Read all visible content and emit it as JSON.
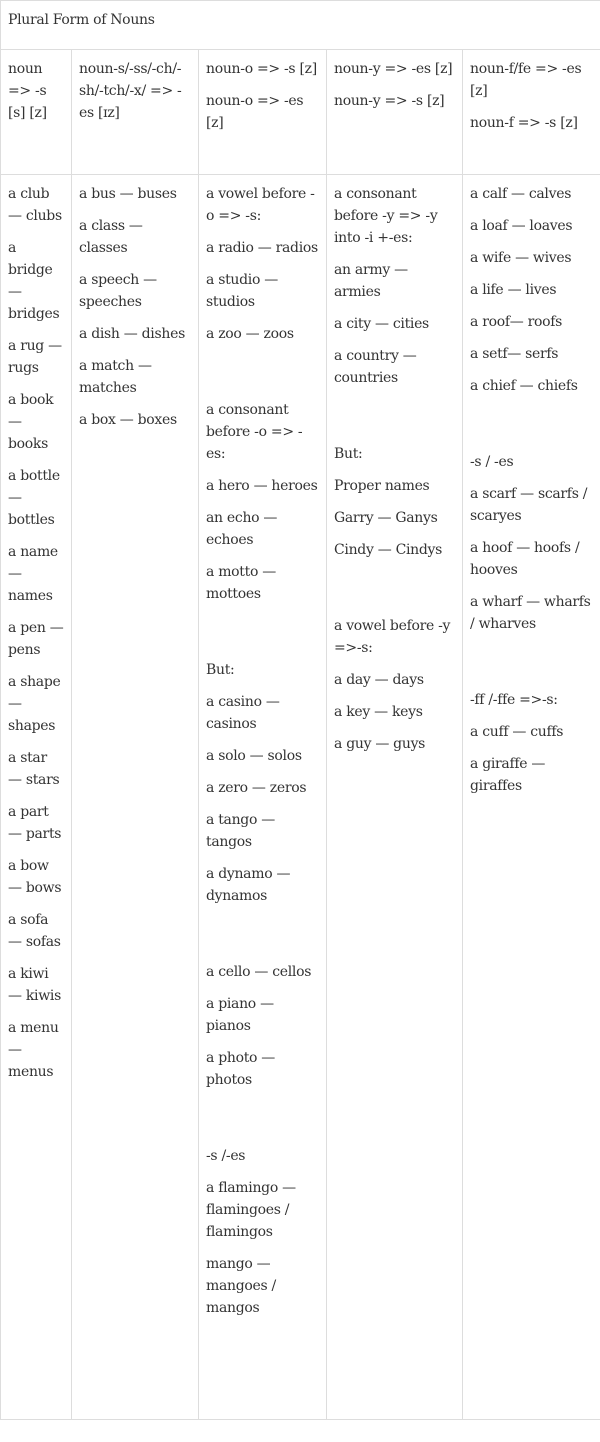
{
  "title": "Plural Form of Nouns",
  "columns": [
    {
      "header": [
        "noun => -s [s] [z]"
      ],
      "items": [
        "a club — clubs",
        "a bridge — bridges",
        "a rug — rugs",
        "a book — books",
        "a bottle — bottles",
        "a name — names",
        "a pen — pens",
        "a shape — shapes",
        "a star — stars",
        "a part — parts",
        "a bow — bows",
        "a sofa — sofas",
        "a kiwi — kiwis",
        "a menu — menus"
      ]
    },
    {
      "header": [
        "noun-s/-ss/-ch/-sh/-tch/-x/ => -es [ɪz]"
      ],
      "items": [
        "a bus — buses",
        "a class — classes",
        "a speech — speeches",
        "a dish — dishes",
        "a match — matches",
        "a box — boxes"
      ]
    },
    {
      "header": [
        "noun-o => -s [z]",
        "noun-o => -es [z]"
      ],
      "items": [
        "a vowel before -o => -s:",
        "a radio — radios",
        "a studio — studios",
        "a zoo — zoos",
        "",
        "a consonant before -o => -es:",
        "a hero — heroes",
        "an echo — echoes",
        "a motto — mottoes",
        "",
        "But:",
        "a casino — casinos",
        "a solo — solos",
        "a zero — zeros",
        "a tango — tangos",
        "a dynamo — dynamos",
        "",
        "a cello — cellos",
        "a piano — pianos",
        "a photo — photos",
        "",
        "-s /-es",
        "a flamingo — flamingoes / flamingos",
        "mango — mangoes / mangos"
      ]
    },
    {
      "header": [
        "noun-y => -es [z]",
        "noun-y => -s [z]"
      ],
      "items": [
        "a consonant before -y => -y into -i +-es:",
        "an army — armies",
        "a city — cities",
        "a country — countries",
        "",
        "But:",
        "Proper names",
        "Garry — Ganys",
        "Cindy — Cindys",
        "",
        "a vowel before -y =>-s:",
        "a day — days",
        "a key — keys",
        "a guy — guys"
      ]
    },
    {
      "header": [
        "noun-f/fe => -es [z]",
        "noun-f => -s [z]"
      ],
      "items": [
        "a calf — calves",
        "a loaf — loaves",
        "a wife — wives",
        "a life — lives",
        "a roof— roofs",
        "a setf— serfs",
        "a chief — chiefs",
        "",
        "-s / -es",
        "a scarf — scarfs / scaryes",
        "a hoof — hoofs / hooves",
        "a wharf — wharfs / wharves",
        "",
        "-ff /-ffe =>-s:",
        "a cuff — cuffs",
        "a giraffe — giraffes"
      ]
    }
  ]
}
